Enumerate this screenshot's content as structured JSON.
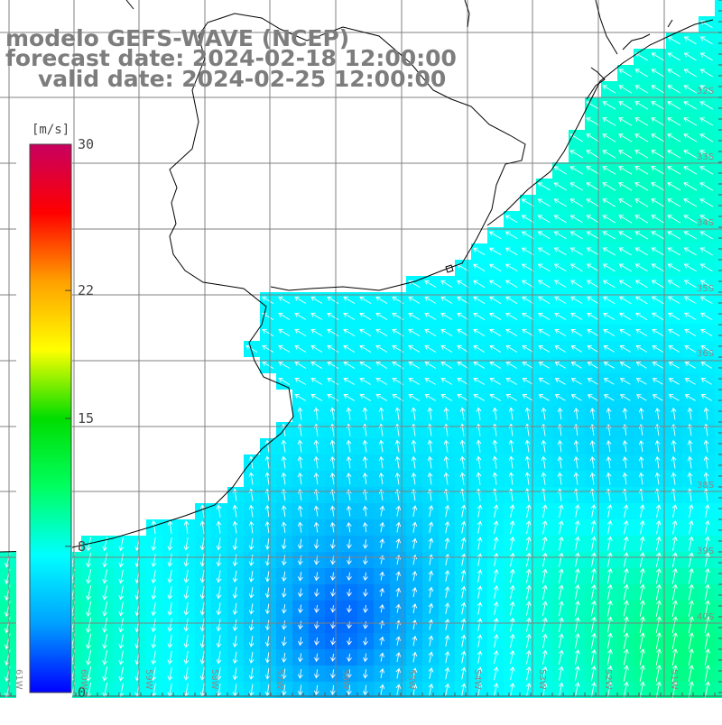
{
  "header": {
    "model": "modelo GEFS-WAVE (NCEP)",
    "forecast": "forecast date: 2024-02-18 12:00:00",
    "valid": "valid date: 2024-02-25 12:00:00"
  },
  "colorbar": {
    "unit": "[m/s]",
    "ticks": [
      "30",
      "22",
      "15",
      "8",
      "0"
    ],
    "stops": [
      "#0000ff",
      "#00a0ff",
      "#00ffff",
      "#00ff60",
      "#00dd00",
      "#ffff00",
      "#ffa000",
      "#ff0000",
      "#c80060"
    ]
  },
  "map": {
    "lat_labels": [
      "32S",
      "33S",
      "34S",
      "35S",
      "36S",
      "38S",
      "39S",
      "40S"
    ],
    "lon_labels": [
      "61W",
      "60W",
      "59W",
      "58W",
      "57W",
      "56W",
      "55W",
      "54W",
      "53W",
      "52W",
      "51W"
    ],
    "colors": {
      "land": "#ffffff",
      "grid": "#808080",
      "coast": "#000000",
      "arrow": "#ffffff"
    }
  }
}
